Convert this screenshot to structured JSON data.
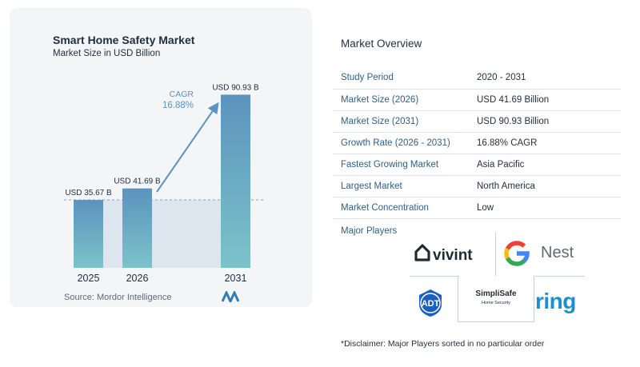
{
  "chart_data": {
    "type": "bar",
    "title": "Smart Home Safety Market",
    "subtitle": "Market Size in USD Billion",
    "categories": [
      "2025",
      "2026",
      "2031"
    ],
    "values": [
      35.67,
      41.69,
      90.93
    ],
    "value_labels": [
      "USD 35.67 B",
      "USD 41.69 B",
      "USD 90.93 B"
    ],
    "cagr_label": "CAGR",
    "cagr_value": "16.88%",
    "ylim": [
      0,
      100
    ],
    "grid": false
  },
  "source": "Source:  Mordor Intelligence",
  "overview": {
    "title": "Market Overview",
    "rows": [
      {
        "label": "Study Period",
        "value": "2020 - 2031"
      },
      {
        "label": "Market Size (2026)",
        "value": "USD 41.69 Billion"
      },
      {
        "label": "Market Size (2031)",
        "value": "USD 90.93 Billion"
      },
      {
        "label": "Growth Rate (2026 - 2031)",
        "value": "16.88% CAGR"
      },
      {
        "label": "Fastest Growing Market",
        "value": "Asia Pacific"
      },
      {
        "label": "Largest Market",
        "value": "North America"
      },
      {
        "label": "Market Concentration",
        "value": "Low"
      }
    ]
  },
  "players": {
    "title": "Major Players",
    "logos": [
      "vivint",
      "Nest",
      "ADT",
      "SimpliSafe",
      "Home Security",
      "ring"
    ]
  },
  "disclaimer": "*Disclaimer: Major Players sorted in no particular order",
  "colors": {
    "bar_top": "#5b93be",
    "bar_bottom": "#7cc3c9",
    "arrow": "#5b93be",
    "label_blue": "#2f5f86"
  }
}
